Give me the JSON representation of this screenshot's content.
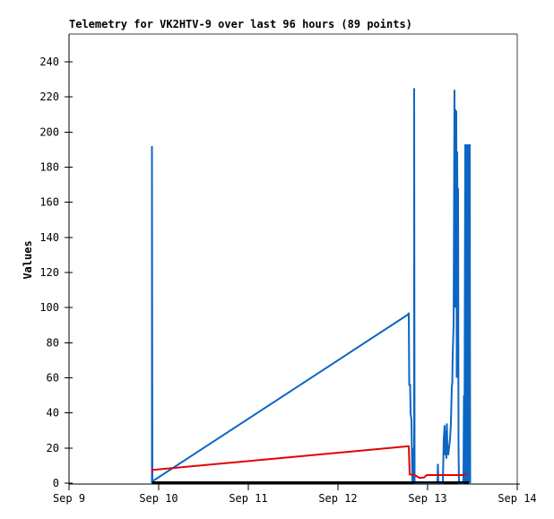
{
  "window": {
    "background": "#ffffff"
  },
  "chart_data": {
    "type": "line",
    "title": "Telemetry for VK2HTV-9 over last 96 hours (89 points)",
    "ylabel": "Values",
    "xlabel": "",
    "grid": false,
    "legend": "none",
    "x_axis": {
      "unit": "date",
      "tick_positions_days": [
        0,
        1,
        2,
        3,
        4,
        5
      ],
      "tick_labels": [
        "Sep 9",
        "Sep 10",
        "Sep 11",
        "Sep 12",
        "Sep 13",
        "Sep 14"
      ],
      "range_days": [
        0,
        5
      ]
    },
    "y_axis": {
      "ticks": [
        0,
        20,
        40,
        60,
        80,
        100,
        120,
        140,
        160,
        180,
        200,
        220,
        240
      ],
      "range": [
        0,
        255.8
      ]
    },
    "series": [
      {
        "name": "telemetry-channel-blue",
        "color": "#0c66c2",
        "stroke_width": 2,
        "points_day_value": [
          [
            0.925,
            0
          ],
          [
            0.925,
            192
          ],
          [
            0.93,
            1
          ],
          [
            3.78,
            96
          ],
          [
            3.79,
            97
          ],
          [
            3.795,
            56
          ],
          [
            3.805,
            56
          ],
          [
            3.81,
            40
          ],
          [
            3.82,
            36
          ],
          [
            3.83,
            1
          ],
          [
            3.835,
            20
          ],
          [
            3.84,
            1
          ],
          [
            3.85,
            0
          ],
          [
            3.85,
            225
          ],
          [
            3.855,
            0
          ],
          [
            4.11,
            0
          ],
          [
            4.115,
            11
          ],
          [
            4.12,
            0
          ],
          [
            4.17,
            0
          ],
          [
            4.18,
            25
          ],
          [
            4.19,
            33
          ],
          [
            4.195,
            16
          ],
          [
            4.2,
            30
          ],
          [
            4.21,
            14
          ],
          [
            4.215,
            34
          ],
          [
            4.22,
            22
          ],
          [
            4.23,
            16
          ],
          [
            4.25,
            25
          ],
          [
            4.26,
            34
          ],
          [
            4.27,
            55
          ],
          [
            4.275,
            57
          ],
          [
            4.28,
            73
          ],
          [
            4.29,
            90
          ],
          [
            4.3,
            224
          ],
          [
            4.305,
            100
          ],
          [
            4.31,
            213
          ],
          [
            4.315,
            160
          ],
          [
            4.32,
            212
          ],
          [
            4.325,
            60
          ],
          [
            4.33,
            189
          ],
          [
            4.335,
            130
          ],
          [
            4.34,
            168
          ],
          [
            4.345,
            20
          ],
          [
            4.35,
            0
          ],
          [
            4.4,
            0
          ],
          [
            4.405,
            50
          ],
          [
            4.41,
            0
          ],
          [
            4.42,
            193
          ],
          [
            4.425,
            0
          ],
          [
            4.43,
            97
          ],
          [
            4.435,
            193
          ],
          [
            4.44,
            0
          ],
          [
            4.445,
            98
          ],
          [
            4.45,
            193
          ],
          [
            4.455,
            0
          ],
          [
            4.46,
            97
          ],
          [
            4.465,
            0
          ],
          [
            4.47,
            193
          ],
          [
            4.475,
            0
          ],
          [
            4.48,
            0
          ]
        ]
      },
      {
        "name": "telemetry-channel-red",
        "color": "#e60000",
        "stroke_width": 2,
        "points_day_value": [
          [
            0.925,
            6
          ],
          [
            0.93,
            7.5
          ],
          [
            3.78,
            21
          ],
          [
            3.79,
            21
          ],
          [
            3.8,
            5
          ],
          [
            3.86,
            4.5
          ],
          [
            3.91,
            3
          ],
          [
            3.96,
            3.2
          ],
          [
            3.99,
            4.6
          ],
          [
            4.41,
            4.6
          ],
          [
            4.43,
            5.5
          ]
        ]
      },
      {
        "name": "telemetry-channel-black",
        "color": "#000000",
        "stroke_width": 2.5,
        "points_day_value": [
          [
            0.925,
            0.4
          ],
          [
            4.46,
            0.4
          ]
        ]
      }
    ],
    "plot_border_color": "#3c3c3c",
    "axis_color": "#000000",
    "text_color": "#000000"
  }
}
